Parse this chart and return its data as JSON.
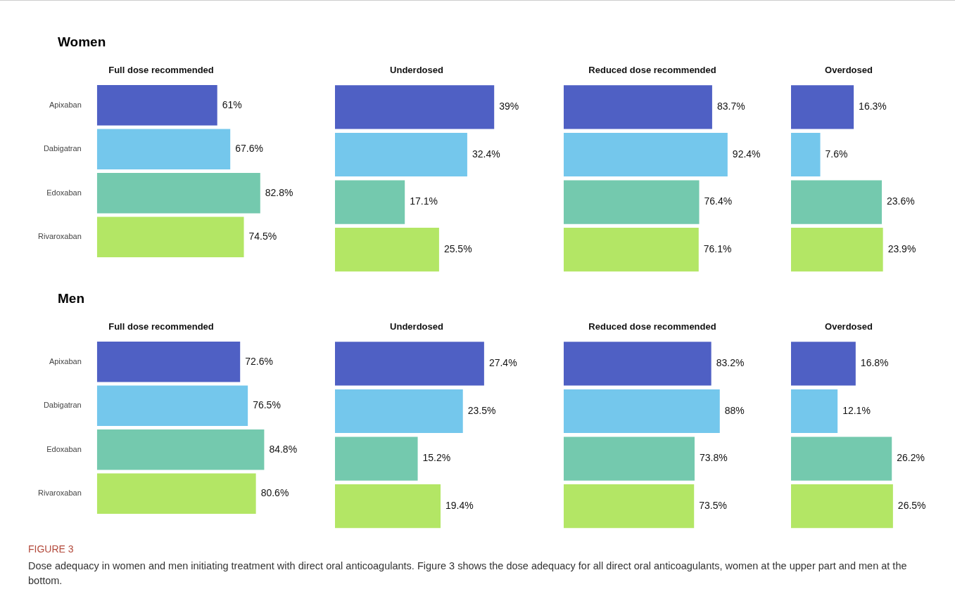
{
  "chart_data": [
    {
      "type": "bar",
      "orientation": "horizontal",
      "title": "Full dose recommended",
      "annotations": [
        "Women"
      ],
      "tick_labels": "y",
      "categories": [
        "Apixaban",
        "Dabigatran",
        "Edoxaban",
        "Rivaroxaban"
      ],
      "values": [
        61,
        67.6,
        82.8,
        74.5
      ],
      "value_labels": [
        "61%",
        "67.6%",
        "82.8%",
        "74.5%"
      ],
      "colors": [
        "#4f60c4",
        "#74c7ec",
        "#74c9ae",
        "#b3e665"
      ]
    },
    {
      "type": "bar",
      "orientation": "horizontal",
      "title": "Underdosed",
      "tick_labels": false,
      "categories": [
        null,
        null,
        null,
        null
      ],
      "values": [
        39,
        32.4,
        17.1,
        25.5
      ],
      "value_labels": [
        "39%",
        "32.4%",
        "17.1%",
        "25.5%"
      ],
      "colors": [
        "#4f60c4",
        "#74c7ec",
        "#74c9ae",
        "#b3e665"
      ]
    },
    {
      "type": "bar",
      "orientation": "horizontal",
      "title": "Reduced dose recommended",
      "tick_labels": false,
      "categories": [
        null,
        null,
        null,
        null
      ],
      "values": [
        83.7,
        92.4,
        76.4,
        76.1
      ],
      "value_labels": [
        "83.7%",
        "92.4%",
        "76.4%",
        "76.1%"
      ],
      "colors": [
        "#4f60c4",
        "#74c7ec",
        "#74c9ae",
        "#b3e665"
      ]
    },
    {
      "type": "bar",
      "orientation": "horizontal",
      "title": "Overdosed",
      "tick_labels": false,
      "categories": [
        null,
        null,
        null,
        null
      ],
      "values": [
        16.3,
        7.6,
        23.6,
        23.9
      ],
      "value_labels": [
        "16.3%",
        "7.6%",
        "23.6%",
        "23.9%"
      ],
      "colors": [
        "#4f60c4",
        "#74c7ec",
        "#74c9ae",
        "#b3e665"
      ]
    },
    {
      "type": "bar",
      "orientation": "horizontal",
      "title": "Full dose recommended",
      "annotations": [
        "Men"
      ],
      "tick_labels": "y",
      "categories": [
        "Apixaban",
        "Dabigatran",
        "Edoxaban",
        "Rivaroxaban"
      ],
      "values": [
        72.6,
        76.5,
        84.8,
        80.6
      ],
      "value_labels": [
        "72.6%",
        "76.5%",
        "84.8%",
        "80.6%"
      ],
      "colors": [
        "#4f60c4",
        "#74c7ec",
        "#74c9ae",
        "#b3e665"
      ]
    },
    {
      "type": "bar",
      "orientation": "horizontal",
      "title": "Underdosed",
      "tick_labels": false,
      "categories": [
        null,
        null,
        null,
        null
      ],
      "values": [
        27.4,
        23.5,
        15.2,
        19.4
      ],
      "value_labels": [
        "27.4%",
        "23.5%",
        "15.2%",
        "19.4%"
      ],
      "colors": [
        "#4f60c4",
        "#74c7ec",
        "#74c9ae",
        "#b3e665"
      ]
    },
    {
      "type": "bar",
      "orientation": "horizontal",
      "title": "Reduced dose recommended",
      "tick_labels": false,
      "categories": [
        null,
        null,
        null,
        null
      ],
      "values": [
        83.2,
        88,
        73.8,
        73.5
      ],
      "value_labels": [
        "83.2%",
        "88%",
        "73.8%",
        "73.5%"
      ],
      "colors": [
        "#4f60c4",
        "#74c7ec",
        "#74c9ae",
        "#b3e665"
      ]
    },
    {
      "type": "bar",
      "orientation": "horizontal",
      "title": "Overdosed",
      "tick_labels": false,
      "categories": [
        null,
        null,
        null,
        null
      ],
      "values": [
        16.8,
        12.1,
        26.2,
        26.5
      ],
      "value_labels": [
        "16.8%",
        "12.1%",
        "26.2%",
        "26.5%"
      ],
      "colors": [
        "#4f60c4",
        "#74c7ec",
        "#74c9ae",
        "#b3e665"
      ],
      "annotations": [
        "FIGURE 3",
        "Dose adequacy in women and men initiating treatment with direct oral anticoagulants. Figure 3 shows the dose adequacy for all direct oral anticoagulants, women at the upper part and men at the bottom."
      ]
    }
  ]
}
